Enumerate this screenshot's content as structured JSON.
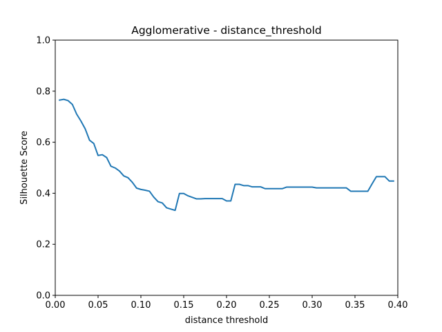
{
  "chart_data": {
    "type": "line",
    "title": "Agglomerative - distance_threshold",
    "xlabel": "distance threshold",
    "ylabel": "Silhouette Score",
    "xlim": [
      0.0,
      0.4
    ],
    "ylim": [
      0.0,
      1.0
    ],
    "x_ticks": [
      "0.00",
      "0.05",
      "0.10",
      "0.15",
      "0.20",
      "0.25",
      "0.30",
      "0.35",
      "0.40"
    ],
    "y_ticks": [
      "0.0",
      "0.2",
      "0.4",
      "0.6",
      "0.8",
      "1.0"
    ],
    "grid": false,
    "legend": "none",
    "series": [
      {
        "color": "#1f77b4",
        "x": [
          0.005,
          0.01,
          0.015,
          0.02,
          0.025,
          0.03,
          0.035,
          0.04,
          0.045,
          0.05,
          0.055,
          0.06,
          0.065,
          0.07,
          0.075,
          0.08,
          0.085,
          0.09,
          0.095,
          0.1,
          0.105,
          0.11,
          0.115,
          0.12,
          0.125,
          0.13,
          0.135,
          0.14,
          0.145,
          0.15,
          0.155,
          0.16,
          0.165,
          0.17,
          0.175,
          0.18,
          0.185,
          0.19,
          0.195,
          0.2,
          0.205,
          0.21,
          0.215,
          0.22,
          0.225,
          0.23,
          0.235,
          0.24,
          0.245,
          0.25,
          0.255,
          0.26,
          0.265,
          0.27,
          0.275,
          0.28,
          0.285,
          0.29,
          0.295,
          0.3,
          0.305,
          0.31,
          0.315,
          0.32,
          0.325,
          0.33,
          0.335,
          0.34,
          0.345,
          0.35,
          0.355,
          0.36,
          0.365,
          0.37,
          0.375,
          0.38,
          0.385,
          0.39,
          0.395
        ],
        "y": [
          0.765,
          0.768,
          0.763,
          0.748,
          0.71,
          0.683,
          0.652,
          0.608,
          0.595,
          0.548,
          0.551,
          0.54,
          0.506,
          0.499,
          0.487,
          0.468,
          0.461,
          0.443,
          0.42,
          0.415,
          0.412,
          0.408,
          0.385,
          0.367,
          0.362,
          0.343,
          0.338,
          0.333,
          0.399,
          0.399,
          0.39,
          0.384,
          0.378,
          0.378,
          0.379,
          0.379,
          0.379,
          0.379,
          0.379,
          0.37,
          0.37,
          0.435,
          0.435,
          0.43,
          0.43,
          0.425,
          0.425,
          0.425,
          0.418,
          0.418,
          0.418,
          0.418,
          0.418,
          0.424,
          0.424,
          0.424,
          0.424,
          0.424,
          0.424,
          0.424,
          0.421,
          0.421,
          0.421,
          0.421,
          0.421,
          0.421,
          0.421,
          0.421,
          0.408,
          0.408,
          0.408,
          0.408,
          0.408,
          0.437,
          0.465,
          0.465,
          0.465,
          0.448,
          0.448
        ]
      }
    ]
  }
}
